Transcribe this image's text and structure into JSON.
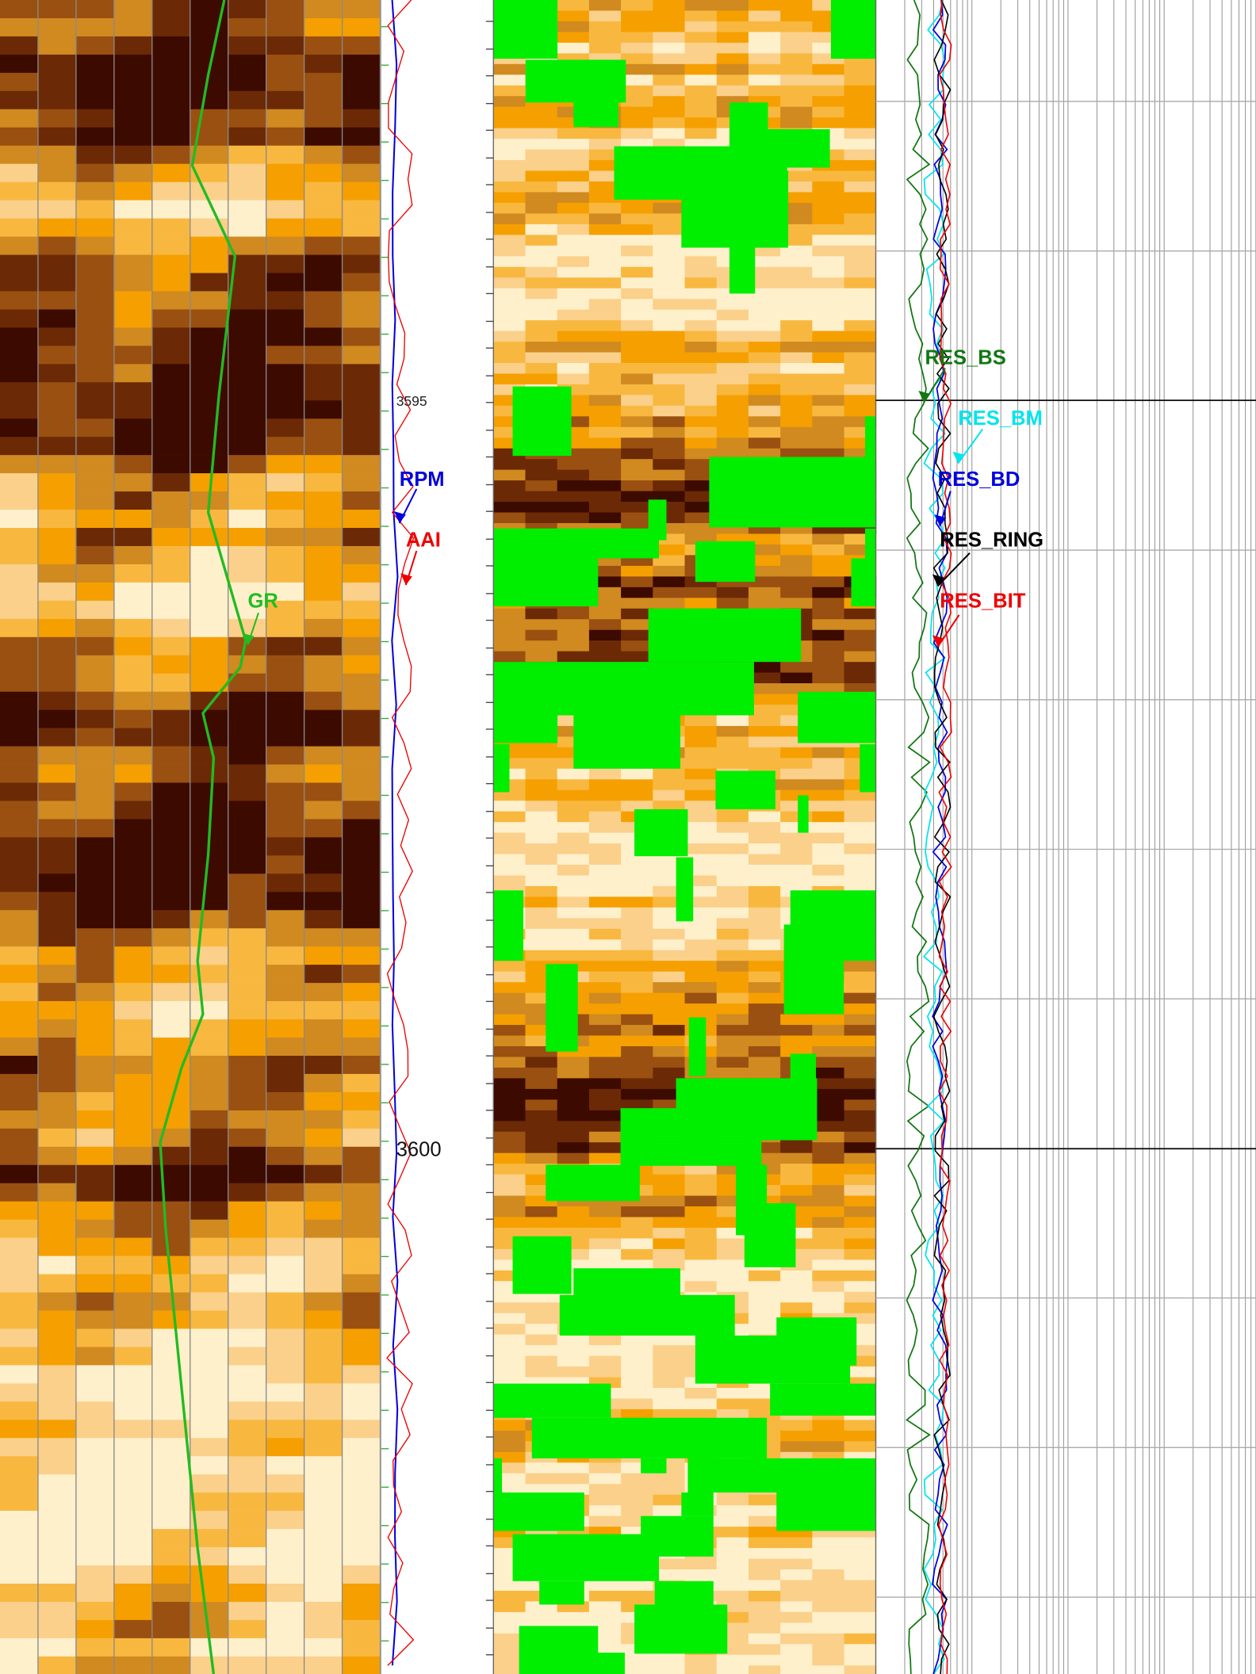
{
  "depth_labels": [
    "3595",
    "3600"
  ],
  "curve_labels": {
    "rpm": "RPM",
    "aai": "AAI",
    "gr": "GR",
    "res_bs": "RES_BS",
    "res_bm": "RES_BM",
    "res_bd": "RES_BD",
    "res_ring": "RES_RING",
    "res_bit": "RES_BIT"
  }
}
